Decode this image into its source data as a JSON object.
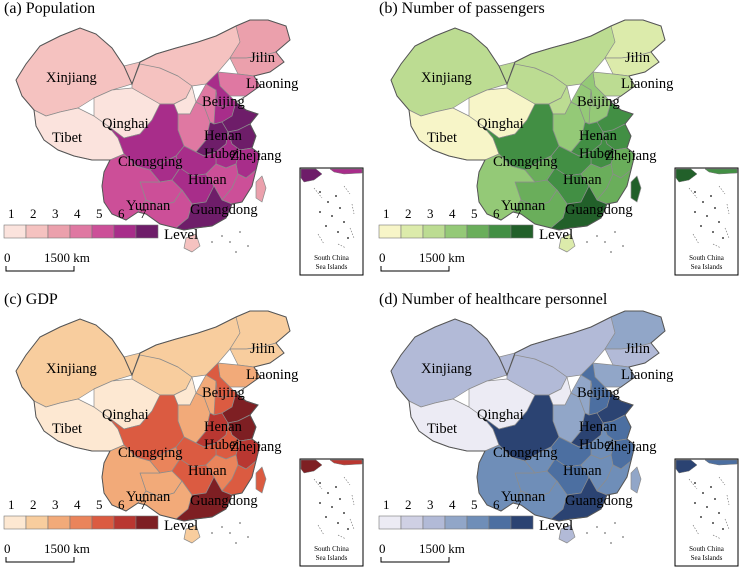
{
  "panels": [
    {
      "id": "a",
      "title": "(a) Population",
      "colors": [
        "#fbe3dd",
        "#f5c2c0",
        "#eba0ac",
        "#df78a2",
        "#cc4f98",
        "#a82d8a",
        "#6e1d69"
      ],
      "provinces": {
        "xinjiang": 2,
        "tibet": 1,
        "qinghai": 1,
        "gansu": 2,
        "inner_mongolia": 2,
        "heilongjiang": 3,
        "jilin": 3,
        "liaoning": 4,
        "beijing": 6,
        "hebei": 6,
        "shanxi": 4,
        "shaanxi": 4,
        "ningxia": 1,
        "sichuan": 6,
        "chongqing": 6,
        "yunnan": 5,
        "guizhou": 5,
        "guangxi": 5,
        "guangdong": 7,
        "hunan": 6,
        "hubei": 6,
        "henan": 7,
        "shandong": 7,
        "jiangsu": 7,
        "anhui": 6,
        "zhejiang": 6,
        "jiangxi": 5,
        "fujian": 5,
        "hainan": 2,
        "taiwan": 3
      }
    },
    {
      "id": "b",
      "title": "(b) Number of passengers",
      "colors": [
        "#f7f5c8",
        "#dcebab",
        "#bcdc92",
        "#94c977",
        "#6aae5b",
        "#428f44",
        "#22602a"
      ],
      "provinces": {
        "xinjiang": 3,
        "tibet": 1,
        "qinghai": 1,
        "gansu": 3,
        "inner_mongolia": 3,
        "heilongjiang": 2,
        "jilin": 2,
        "liaoning": 3,
        "beijing": 4,
        "hebei": 4,
        "shanxi": 4,
        "shaanxi": 4,
        "ningxia": 3,
        "sichuan": 6,
        "chongqing": 5,
        "yunnan": 4,
        "guizhou": 5,
        "guangxi": 5,
        "guangdong": 7,
        "hunan": 6,
        "hubei": 6,
        "henan": 6,
        "shandong": 6,
        "jiangsu": 6,
        "anhui": 6,
        "zhejiang": 5,
        "jiangxi": 5,
        "fujian": 5,
        "hainan": 2,
        "taiwan": 7
      }
    },
    {
      "id": "c",
      "title": "(c) GDP",
      "colors": [
        "#fde8d2",
        "#f8cd9e",
        "#f2aa79",
        "#ea845b",
        "#db5b41",
        "#b93731",
        "#7e1f23"
      ],
      "provinces": {
        "xinjiang": 2,
        "tibet": 1,
        "qinghai": 1,
        "gansu": 2,
        "inner_mongolia": 2,
        "heilongjiang": 2,
        "jilin": 2,
        "liaoning": 3,
        "beijing": 5,
        "hebei": 5,
        "shanxi": 3,
        "shaanxi": 3,
        "ningxia": 1,
        "sichuan": 5,
        "chongqing": 4,
        "yunnan": 3,
        "guizhou": 3,
        "guangxi": 3,
        "guangdong": 7,
        "hunan": 5,
        "hubei": 5,
        "henan": 6,
        "shandong": 7,
        "jiangsu": 7,
        "anhui": 5,
        "zhejiang": 6,
        "jiangxi": 4,
        "fujian": 5,
        "hainan": 2,
        "taiwan": 5
      }
    },
    {
      "id": "d",
      "title": "(d) Number of healthcare personnel",
      "colors": [
        "#ecebf4",
        "#cfd0e4",
        "#b2bad7",
        "#91a6c8",
        "#6f8eb8",
        "#4c6fa1",
        "#2b4372"
      ],
      "provinces": {
        "xinjiang": 3,
        "tibet": 1,
        "qinghai": 1,
        "gansu": 3,
        "inner_mongolia": 3,
        "heilongjiang": 4,
        "jilin": 3,
        "liaoning": 4,
        "beijing": 6,
        "hebei": 6,
        "shanxi": 4,
        "shaanxi": 4,
        "ningxia": 1,
        "sichuan": 7,
        "chongqing": 5,
        "yunnan": 5,
        "guizhou": 5,
        "guangxi": 5,
        "guangdong": 7,
        "hunan": 6,
        "hubei": 6,
        "henan": 7,
        "shandong": 7,
        "jiangsu": 6,
        "anhui": 5,
        "zhejiang": 6,
        "jiangxi": 5,
        "fujian": 5,
        "hainan": 3,
        "taiwan": 4
      }
    }
  ],
  "labels": {
    "xinjiang": "Xinjiang",
    "tibet": "Tibet",
    "qinghai": "Qinghai",
    "jilin": "Jilin",
    "liaoning": "Liaoning",
    "beijing": "Beijing",
    "henan": "Henan",
    "hubei": "Hubei",
    "chongqing": "Chongqing",
    "zhejiang": "Zhejiang",
    "hunan": "Hunan",
    "yunnan": "Yunnan",
    "guangdong": "Guangdong"
  },
  "legend": {
    "levels": [
      "1",
      "2",
      "3",
      "4",
      "5",
      "6",
      "7"
    ],
    "word": "Level"
  },
  "scale": {
    "zero": "0",
    "distance": "1500 km"
  },
  "inset": {
    "line1": "South China",
    "line2": "Sea Islands"
  }
}
